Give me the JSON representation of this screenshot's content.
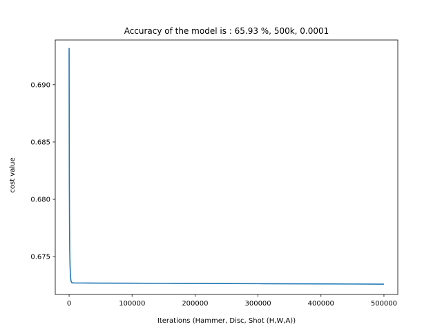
{
  "chart_data": {
    "type": "line",
    "title": "Accuracy of the model is :  65.93 %, 500k, 0.0001",
    "xlabel": "Iterations (Hammer, Disc, Shot (H,W,A))",
    "ylabel": "cost value",
    "xlim": [
      -22000,
      522000
    ],
    "ylim": [
      0.6717,
      0.6939
    ],
    "x_ticks": [
      0,
      100000,
      200000,
      300000,
      400000,
      500000
    ],
    "x_tick_labels": [
      "0",
      "100000",
      "200000",
      "300000",
      "400000",
      "500000"
    ],
    "y_ticks": [
      0.675,
      0.68,
      0.685,
      0.69
    ],
    "y_tick_labels": [
      "0.675",
      "0.680",
      "0.685",
      "0.690"
    ],
    "grid": false,
    "series": [
      {
        "color": "#1f77b4",
        "x": [
          0,
          200,
          400,
          700,
          1000,
          1500,
          2000,
          2500,
          3000,
          3500,
          4000,
          5000,
          6000,
          8000,
          10000,
          20000,
          50000,
          100000,
          150000,
          200000,
          250000,
          300000,
          350000,
          400000,
          450000,
          500000
        ],
        "y": [
          0.6932,
          0.686,
          0.681,
          0.6775,
          0.6756,
          0.6742,
          0.6735,
          0.6731,
          0.6729,
          0.6728,
          0.67275,
          0.67272,
          0.67271,
          0.6727,
          0.6727,
          0.6727,
          0.67269,
          0.67268,
          0.67267,
          0.67266,
          0.67265,
          0.67264,
          0.67263,
          0.67262,
          0.67261,
          0.6726
        ]
      }
    ]
  }
}
